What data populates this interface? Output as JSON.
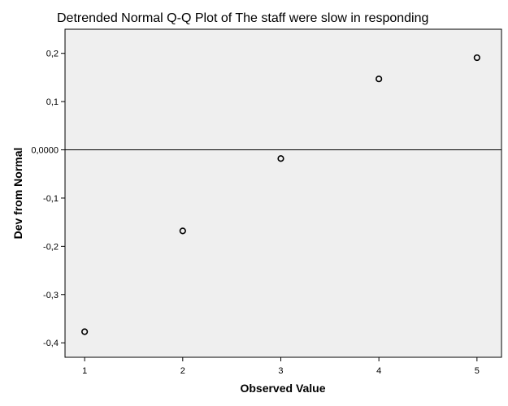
{
  "chart_data": {
    "type": "scatter",
    "title": "Detrended Normal Q-Q Plot of The staff were slow in responding",
    "xlabel": "Observed Value",
    "ylabel": "Dev from Normal",
    "xlim": [
      0.8,
      5.25
    ],
    "ylim": [
      -0.43,
      0.25
    ],
    "x_ticks": [
      1,
      2,
      3,
      4,
      5
    ],
    "x_tick_labels": [
      "1",
      "2",
      "3",
      "4",
      "5"
    ],
    "y_ticks": [
      0.2,
      0.1,
      0.0,
      -0.1,
      -0.2,
      -0.3,
      -0.4
    ],
    "y_tick_labels": [
      "0,2",
      "0,1",
      "0,0000",
      "-0,1",
      "-0,2",
      "-0,3",
      "-0,4"
    ],
    "reference_line_y": 0.0,
    "grid": false,
    "legend": "none",
    "plot_background": "#efefef",
    "marker_color": "#000000",
    "points": [
      {
        "x": 1,
        "y": -0.377
      },
      {
        "x": 2,
        "y": -0.168
      },
      {
        "x": 3,
        "y": -0.018
      },
      {
        "x": 4,
        "y": 0.147
      },
      {
        "x": 5,
        "y": 0.191
      }
    ]
  }
}
